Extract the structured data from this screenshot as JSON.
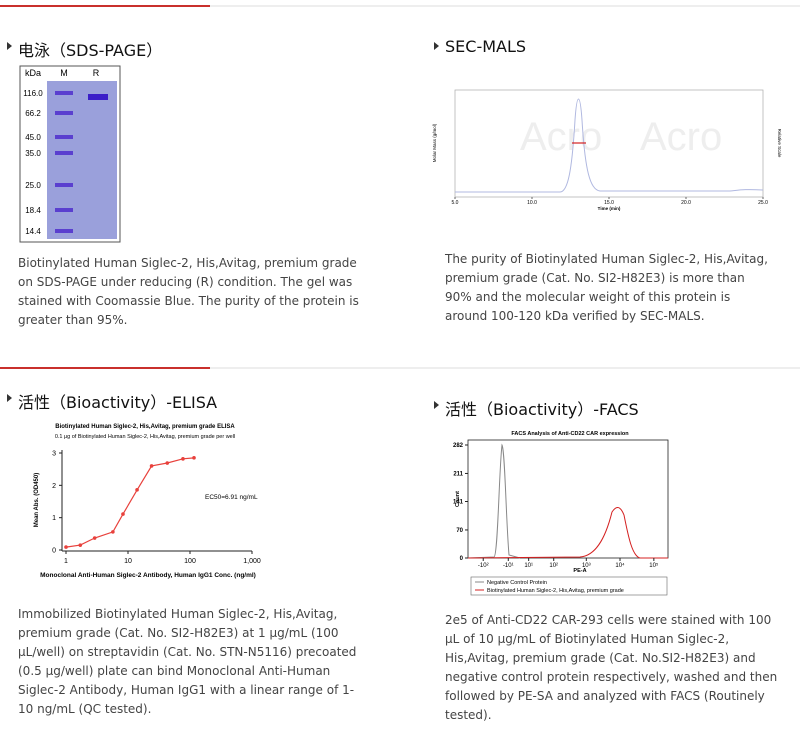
{
  "sections": [
    {
      "title": "电泳（SDS-PAGE）",
      "description": "Biotinylated Human Siglec-2, His,Avitag, premium grade on SDS-PAGE under reducing (R) condition. The gel was stained with Coomassie Blue. The purity of the protein is greater than 95%.",
      "gel": {
        "header": [
          "kDa",
          "M",
          "R"
        ],
        "markers": [
          "116.0",
          "66.2",
          "45.0",
          "35.0",
          "25.0",
          "18.4",
          "14.4"
        ]
      }
    },
    {
      "title": "SEC-MALS",
      "description": "The purity of Biotinylated Human Siglec-2, His,Avitag, premium grade (Cat. No. SI2-H82E3) is more than 90% and the molecular weight of this protein is around 100-120 kDa verified by SEC-MALS.",
      "chart": {
        "x_label": "Time (min)",
        "y_label": "Molar Mass (g/mol)",
        "y2_label": "Relative Scale",
        "xlim": [
          5,
          25
        ],
        "xticks": [
          {
            "value": 5,
            "label": "5.0"
          },
          {
            "value": 10,
            "label": "10.0"
          },
          {
            "value": 15,
            "label": "15.0"
          },
          {
            "value": 20,
            "label": "20.0"
          },
          {
            "value": 25,
            "label": "25.0"
          }
        ]
      }
    },
    {
      "title": "活性（Bioactivity）-ELISA",
      "description": "Immobilized Biotinylated Human Siglec-2, His,Avitag, premium grade (Cat. No. SI2-H82E3) at 1 μg/mL (100 μL/well) on streptavidin (Cat. No. STN-N5116) precoated (0.5 μg/well) plate can bind Monoclonal Anti-Human Siglec-2 Antibody, Human IgG1 with a linear range of 1-10 ng/mL (QC tested).",
      "chart": {
        "type": "scatter",
        "title": "Biotinylated Human Siglec-2, His,Avitag, premium grade ELISA",
        "subtitle": "0.1 μg of Biotinylated Human Siglec-2, His,Avitag, premium grade per well",
        "x_label": "Monoclonal Anti-Human Siglec-2 Antibody, Human IgG1 Conc. (ng/ml)",
        "y_label": "Mean Abs. (OD450)",
        "annotation": "EC50=6.91 ng/mL",
        "xscale": "log",
        "xlim": [
          1,
          1000
        ],
        "xticks": [
          1,
          10,
          100,
          {
            "value": 1000,
            "label": "1,000"
          }
        ],
        "ylim": [
          0,
          3
        ],
        "yticks": [
          0,
          1,
          2,
          3
        ],
        "color": "#e8413c",
        "x": [
          1.0,
          1.7,
          2.9,
          5.7,
          8.3,
          14,
          24,
          43,
          77,
          116
        ],
        "values": [
          0.09,
          0.15,
          0.37,
          0.56,
          1.11,
          1.86,
          2.6,
          2.69,
          2.82,
          2.85
        ]
      }
    },
    {
      "title": "活性（Bioactivity）-FACS",
      "description": "2e5 of Anti-CD22 CAR-293 cells were stained with 100 μL of 10 μg/mL of Biotinylated Human Siglec-2, His,Avitag, premium grade (Cat. No.SI2-H82E3) and negative control protein respectively, washed and then followed by PE-SA and analyzed with FACS (Routinely tested).",
      "chart": {
        "title": "FACS Analysis of Anti-CD22 CAR expression",
        "x_label": "PE-A",
        "y_label": "Count",
        "xlim": [
          -300,
          262000
        ],
        "ylim": [
          0,
          282
        ],
        "yticks": [
          0,
          70,
          141,
          211,
          282
        ],
        "xticks": [
          {
            "value": -100,
            "label": "-10²"
          },
          {
            "value": -10,
            "label": "-10¹"
          },
          {
            "value": 10,
            "label": "10¹"
          },
          {
            "value": 100,
            "label": "10²"
          },
          {
            "value": 1000,
            "label": "10³"
          },
          {
            "value": 10000,
            "label": "10⁴"
          },
          {
            "value": 100000,
            "label": "10⁵"
          }
        ],
        "series": [
          {
            "name": "Negative Control Protein",
            "color": "#888888"
          },
          {
            "name": "Biotinylated Human Siglec-2, His,Avitag, premium grade",
            "color": "#d42020"
          }
        ]
      }
    }
  ]
}
